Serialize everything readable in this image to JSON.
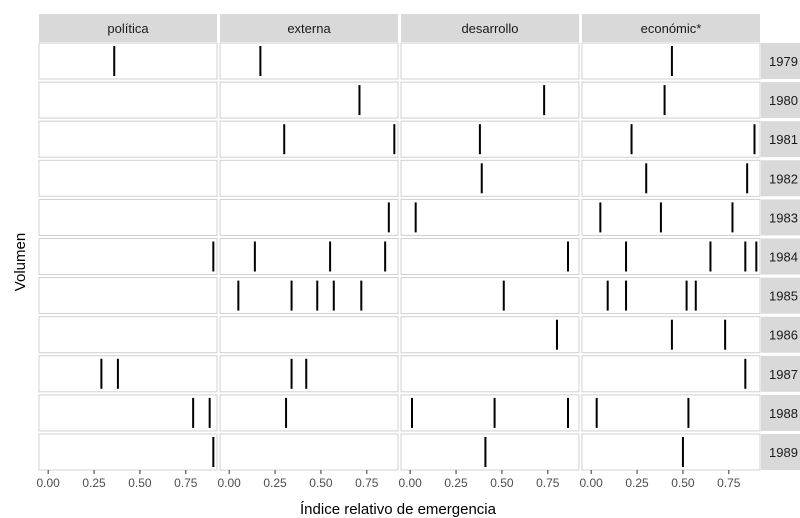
{
  "chart_data": {
    "type": "facet-strip",
    "xlabel": "Índice relativo de emergencia",
    "ylabel": "Volumen",
    "xlim": [
      -0.05,
      0.92
    ],
    "xticks": [
      0.0,
      0.25,
      0.5,
      0.75
    ],
    "xtick_labels": [
      "0.00",
      "0.25",
      "0.50",
      "0.75"
    ],
    "columns": [
      "política",
      "externa",
      "desarrollo",
      "económic*"
    ],
    "rows": [
      "1979",
      "1980",
      "1981",
      "1982",
      "1983",
      "1984",
      "1985",
      "1986",
      "1987",
      "1988",
      "1989"
    ],
    "grid": false,
    "panels": [
      {
        "column": "política",
        "row": "1979",
        "x": [
          0.36
        ]
      },
      {
        "column": "externa",
        "row": "1979",
        "x": [
          0.17
        ]
      },
      {
        "column": "económic*",
        "row": "1979",
        "x": [
          0.44
        ]
      },
      {
        "column": "externa",
        "row": "1980",
        "x": [
          0.71
        ]
      },
      {
        "column": "desarrollo",
        "row": "1980",
        "x": [
          0.73
        ]
      },
      {
        "column": "económic*",
        "row": "1980",
        "x": [
          0.4
        ]
      },
      {
        "column": "externa",
        "row": "1981",
        "x": [
          0.3,
          0.9
        ]
      },
      {
        "column": "desarrollo",
        "row": "1981",
        "x": [
          0.38
        ]
      },
      {
        "column": "económic*",
        "row": "1981",
        "x": [
          0.22,
          0.89
        ]
      },
      {
        "column": "desarrollo",
        "row": "1982",
        "x": [
          0.39
        ]
      },
      {
        "column": "económic*",
        "row": "1982",
        "x": [
          0.3,
          0.85
        ]
      },
      {
        "column": "externa",
        "row": "1983",
        "x": [
          0.87
        ]
      },
      {
        "column": "desarrollo",
        "row": "1983",
        "x": [
          0.03
        ]
      },
      {
        "column": "económic*",
        "row": "1983",
        "x": [
          0.05,
          0.38,
          0.77
        ]
      },
      {
        "column": "política",
        "row": "1984",
        "x": [
          0.9
        ]
      },
      {
        "column": "externa",
        "row": "1984",
        "x": [
          0.14,
          0.55,
          0.85
        ]
      },
      {
        "column": "desarrollo",
        "row": "1984",
        "x": [
          0.86
        ]
      },
      {
        "column": "económic*",
        "row": "1984",
        "x": [
          0.19,
          0.65,
          0.84,
          0.9
        ]
      },
      {
        "column": "externa",
        "row": "1985",
        "x": [
          0.05,
          0.34,
          0.48,
          0.57,
          0.72
        ]
      },
      {
        "column": "desarrollo",
        "row": "1985",
        "x": [
          0.51
        ]
      },
      {
        "column": "económic*",
        "row": "1985",
        "x": [
          0.09,
          0.19,
          0.52,
          0.57
        ]
      },
      {
        "column": "desarrollo",
        "row": "1986",
        "x": [
          0.8
        ]
      },
      {
        "column": "económic*",
        "row": "1986",
        "x": [
          0.44,
          0.73
        ]
      },
      {
        "column": "política",
        "row": "1987",
        "x": [
          0.29,
          0.38
        ]
      },
      {
        "column": "externa",
        "row": "1987",
        "x": [
          0.34,
          0.42
        ]
      },
      {
        "column": "económic*",
        "row": "1987",
        "x": [
          0.84
        ]
      },
      {
        "column": "política",
        "row": "1988",
        "x": [
          0.79,
          0.88
        ]
      },
      {
        "column": "externa",
        "row": "1988",
        "x": [
          0.31
        ]
      },
      {
        "column": "desarrollo",
        "row": "1988",
        "x": [
          0.01,
          0.46,
          0.86
        ]
      },
      {
        "column": "económic*",
        "row": "1988",
        "x": [
          0.03,
          0.53
        ]
      },
      {
        "column": "política",
        "row": "1989",
        "x": [
          0.9
        ]
      },
      {
        "column": "desarrollo",
        "row": "1989",
        "x": [
          0.41
        ]
      },
      {
        "column": "económic*",
        "row": "1989",
        "x": [
          0.5
        ]
      }
    ]
  }
}
